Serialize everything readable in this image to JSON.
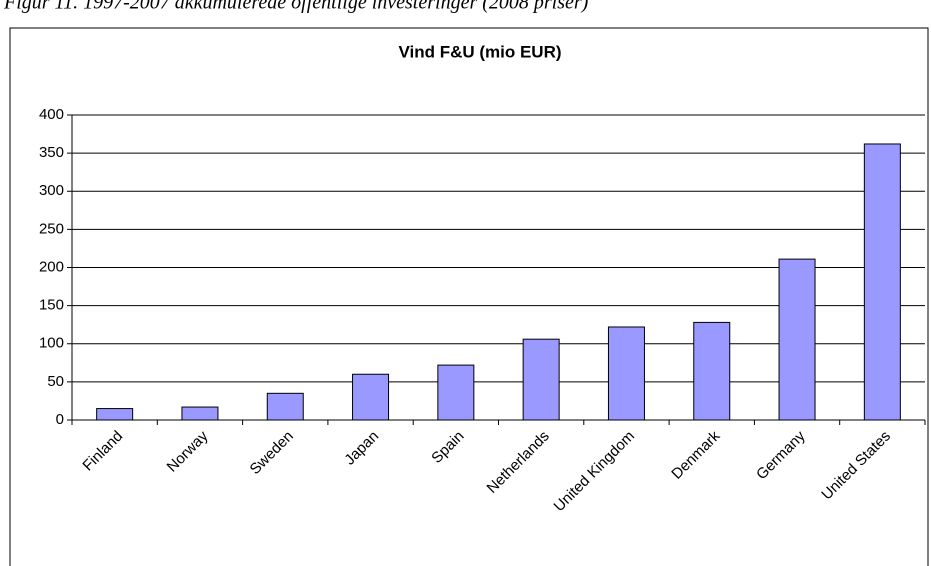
{
  "caption": "Figur 11. 1997-2007 akkumulerede offentlige investeringer (2008 priser)",
  "chart_data": {
    "type": "bar",
    "title": "Vind F&U (mio EUR)",
    "categories": [
      "Finland",
      "Norway",
      "Sweden",
      "Japan",
      "Spain",
      "Netherlands",
      "United Kingdom",
      "Denmark",
      "Germany",
      "United States"
    ],
    "values": [
      15,
      17,
      35,
      60,
      72,
      106,
      122,
      128,
      211,
      362
    ],
    "color": "#9999ff",
    "ylim": [
      0,
      400
    ],
    "yticks": [
      0,
      50,
      100,
      150,
      200,
      250,
      300,
      350,
      400
    ],
    "grid": true
  }
}
